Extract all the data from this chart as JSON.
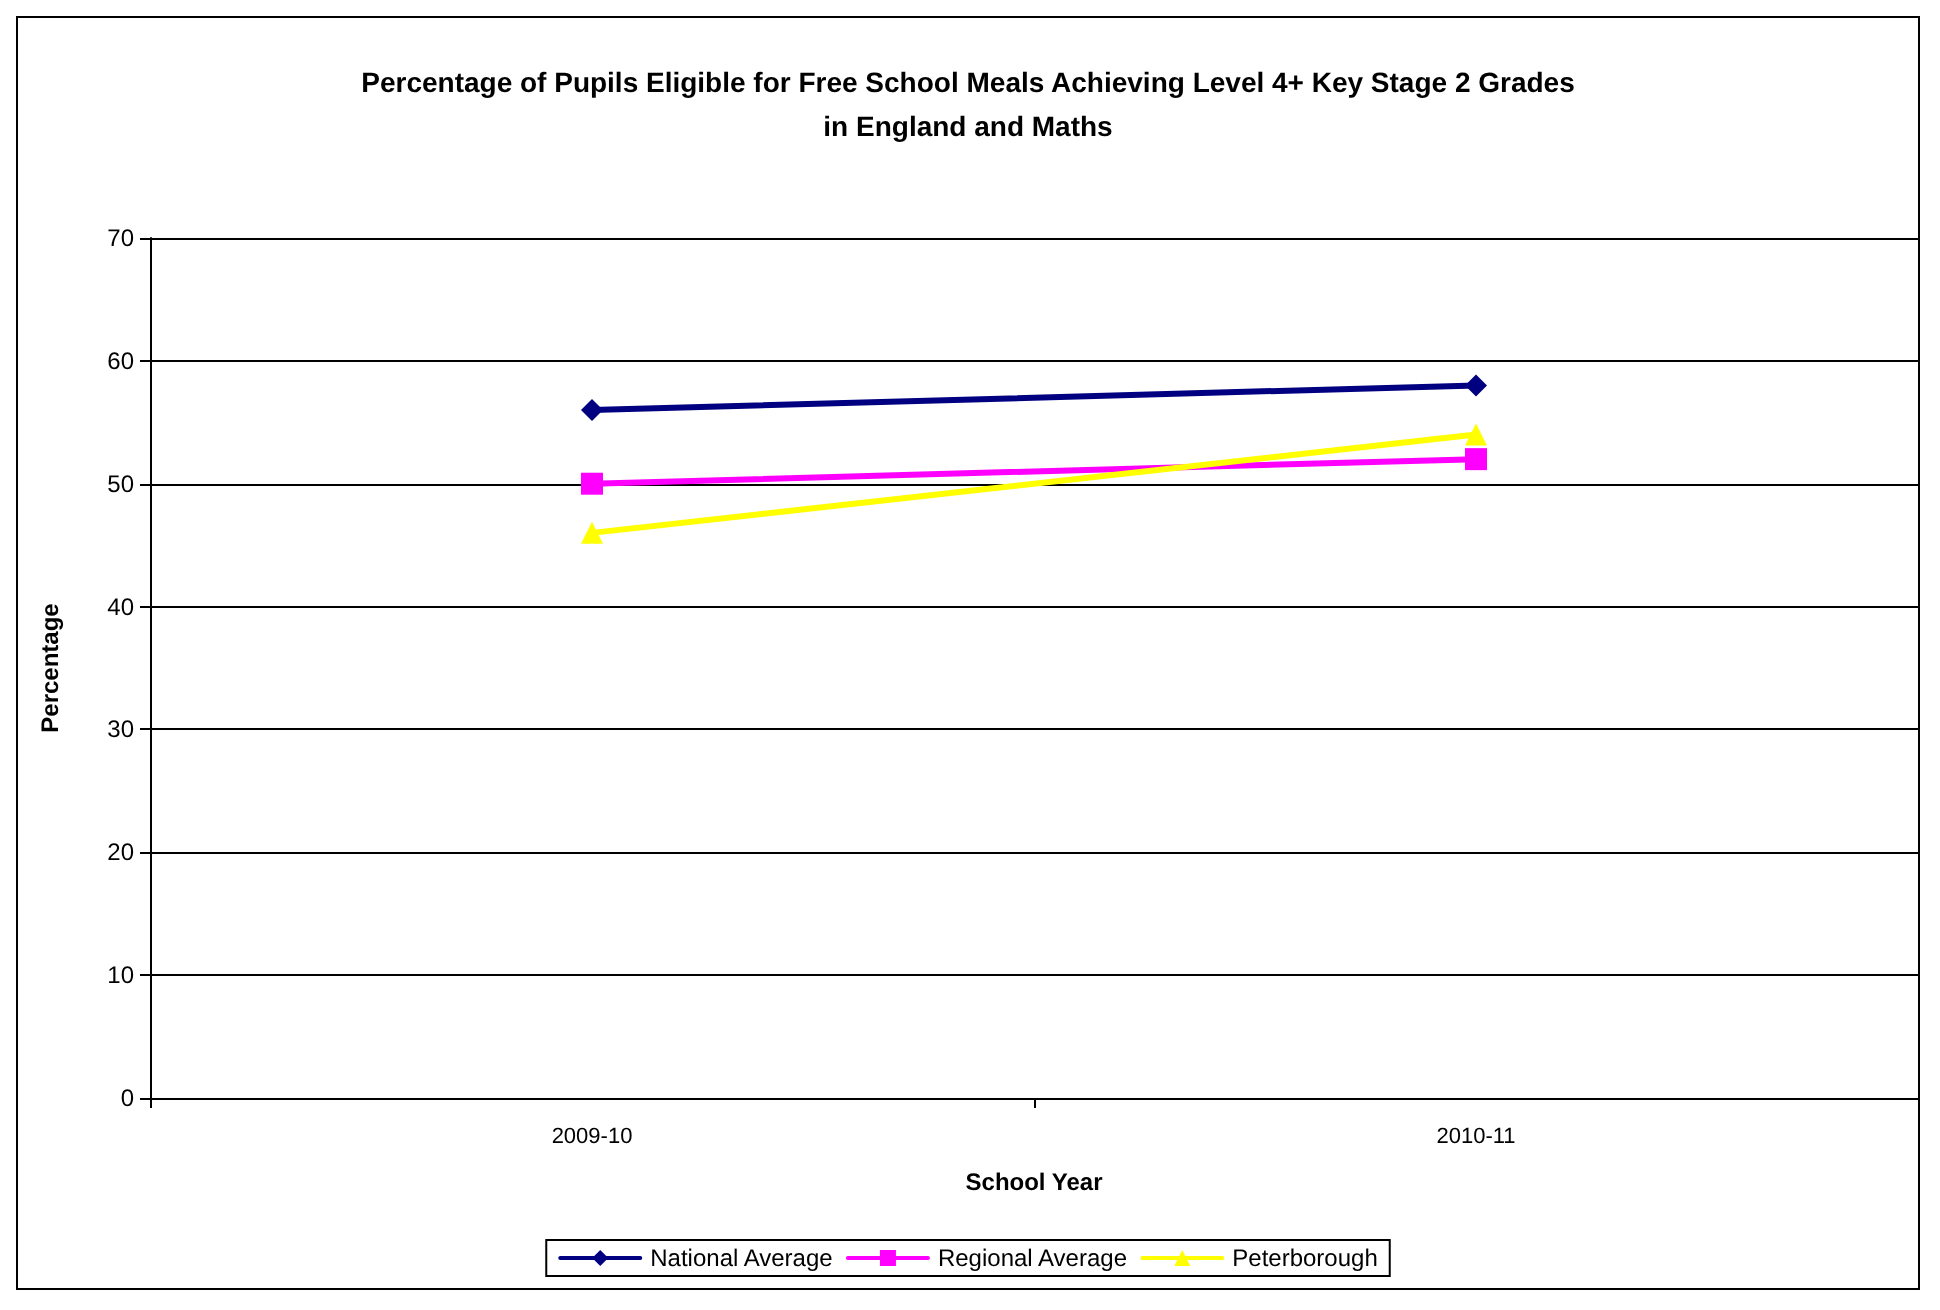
{
  "chart_data": {
    "type": "line",
    "title": "Percentage of Pupils Eligible for Free School Meals Achieving Level 4+ Key Stage 2 Grades\nin England and Maths",
    "xlabel": "School Year",
    "ylabel": "Percentage",
    "categories": [
      "2009-10",
      "2010-11"
    ],
    "series": [
      {
        "name": "National Average",
        "color": "#000080",
        "marker": "diamond",
        "values": [
          56,
          58
        ]
      },
      {
        "name": "Regional Average",
        "color": "#ff00ff",
        "marker": "square",
        "values": [
          50,
          52
        ]
      },
      {
        "name": "Peterborough",
        "color": "#ffff00",
        "marker": "triangle",
        "values": [
          46,
          54
        ]
      }
    ],
    "ylim": [
      0,
      70
    ],
    "yticks": [
      0,
      10,
      20,
      30,
      40,
      50,
      60,
      70
    ],
    "grid": "y",
    "legend": "bottom",
    "line_style": "solid"
  }
}
